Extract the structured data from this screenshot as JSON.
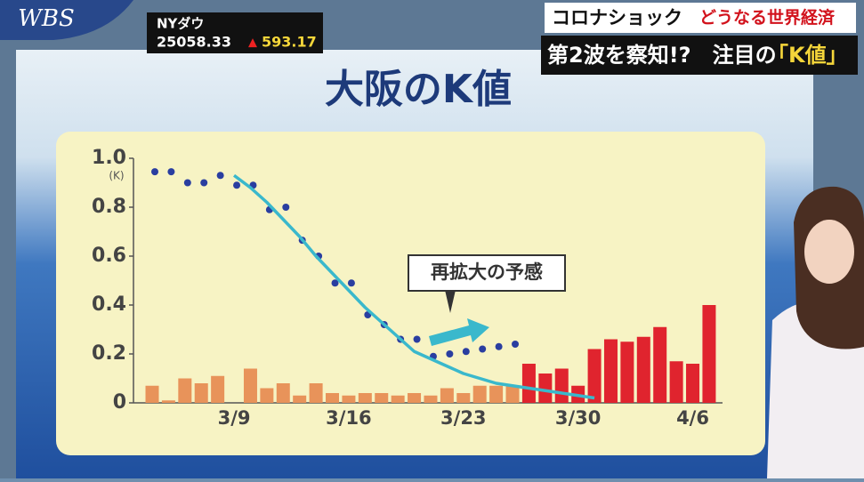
{
  "overlay": {
    "logo": "WBS",
    "ticker_name": "NYダウ",
    "ticker_value": "25058.33",
    "ticker_arrow": "▲",
    "ticker_change": "593.17",
    "caption_main": "コロナショック",
    "caption_sub": "どうなる世界経済",
    "headline": "第2波を察知!?　注目の",
    "headline_key": "「K値」"
  },
  "chart_data": {
    "type": "bar",
    "title": "大阪のK値",
    "y_unit": "(K)",
    "annotation": "再拡大の予感",
    "categories": [
      null,
      null,
      null,
      null,
      null,
      "3/9",
      null,
      null,
      null,
      null,
      null,
      null,
      "3/16",
      null,
      null,
      null,
      null,
      null,
      null,
      "3/23",
      null,
      null,
      null,
      null,
      null,
      null,
      "3/30",
      null,
      null,
      null,
      null,
      null,
      null,
      "4/6",
      null
    ],
    "ylim": [
      0,
      1
    ],
    "yticks": [
      0,
      0.2,
      0.4,
      0.6,
      0.8,
      {
        "value": 1,
        "label": "1.0"
      }
    ],
    "series": [
      {
        "type": "bar",
        "colors": [
          "#e8935a",
          "#e8935a",
          "#e8935a",
          "#e8935a",
          "#e8935a",
          "#e8935a",
          "#e8935a",
          "#e8935a",
          "#e8935a",
          "#e8935a",
          "#e8935a",
          "#e8935a",
          "#e8935a",
          "#e8935a",
          "#e8935a",
          "#e8935a",
          "#e8935a",
          "#e8935a",
          "#e8935a",
          "#e8935a",
          "#e8935a",
          "#e8935a",
          "#e8935a",
          "#e0242e",
          "#e0242e",
          "#e0242e",
          "#e0242e",
          "#e0242e",
          "#e0242e",
          "#e0242e",
          "#e0242e",
          "#e0242e",
          "#e0242e",
          "#e0242e",
          "#e0242e"
        ],
        "values": [
          0.07,
          0.01,
          0.1,
          0.08,
          0.11,
          0,
          0.14,
          0.06,
          0.08,
          0.03,
          0.08,
          0.04,
          0.03,
          0.04,
          0.04,
          0.03,
          0.04,
          0.03,
          0.06,
          0.04,
          0.07,
          0.07,
          0.07,
          0.16,
          0.12,
          0.14,
          0.07,
          0.22,
          0.26,
          0.25,
          0.27,
          0.31,
          0.17,
          0.16,
          0.4
        ]
      },
      {
        "type": "scatter",
        "color": "#2a3ea0",
        "values": [
          0.945,
          0.945,
          0.9,
          0.9,
          0.93,
          0.89,
          0.89,
          0.79,
          0.8,
          0.665,
          0.6,
          0.49,
          0.49,
          0.36,
          0.32,
          0.26,
          0.26,
          0.19,
          0.2,
          0.21,
          0.22,
          0.23,
          0.24,
          null,
          null,
          null,
          null,
          null,
          null,
          null,
          null,
          null,
          null,
          null,
          null
        ]
      },
      {
        "type": "line",
        "color": "#3ab8cc",
        "values": [
          null,
          null,
          null,
          null,
          null,
          0.93,
          0.88,
          0.82,
          0.75,
          0.68,
          0.6,
          0.53,
          0.46,
          0.39,
          0.33,
          0.27,
          0.21,
          0.18,
          0.15,
          0.12,
          0.1,
          0.08,
          0.07,
          0.06,
          0.05,
          0.04,
          0.03,
          0.02,
          null,
          null,
          null,
          null,
          null,
          null,
          null
        ]
      }
    ]
  }
}
